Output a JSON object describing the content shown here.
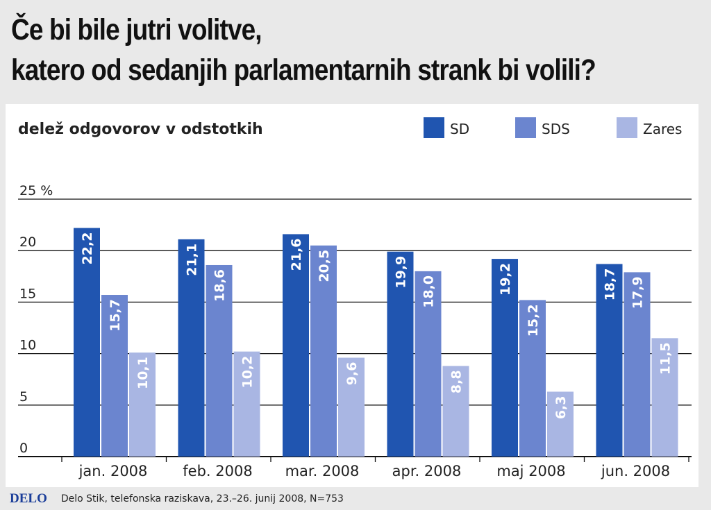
{
  "header": {
    "title_line1": "Če bi bile jutri volitve,",
    "title_line2": "katero od sedanjih parlamentarnih strank bi volili?"
  },
  "footer": {
    "logo": "DELO",
    "source": "Delo Stik, telefonska raziskava, 23.–26. junij 2008, N=753"
  },
  "chart_data": {
    "type": "bar",
    "title": "",
    "subtitle": "delež odgovorov v odstotkih",
    "ylabel": "",
    "xlabel": "",
    "ylim": [
      0,
      25
    ],
    "y_ticks": [
      "0",
      "5",
      "10",
      "15",
      "20",
      "25 %"
    ],
    "y_tick_values": [
      0,
      5,
      10,
      15,
      20,
      25
    ],
    "grid": true,
    "legend_placement": "top-right",
    "categories": [
      "jan. 2008",
      "feb. 2008",
      "mar. 2008",
      "apr. 2008",
      "maj 2008",
      "jun. 2008"
    ],
    "series": [
      {
        "name": "SD",
        "color": "#2055b0",
        "values": [
          22.2,
          21.1,
          21.6,
          19.9,
          19.2,
          18.7
        ],
        "labels": [
          "22,2",
          "21,1",
          "21,6",
          "19,9",
          "19,2",
          "18,7"
        ]
      },
      {
        "name": "SDS",
        "color": "#6b85cf",
        "values": [
          15.7,
          18.6,
          20.5,
          18.0,
          15.2,
          17.9
        ],
        "labels": [
          "15,7",
          "18,6",
          "20,5",
          "18,0",
          "15,2",
          "17,9"
        ]
      },
      {
        "name": "Zares",
        "color": "#a9b6e3",
        "values": [
          10.1,
          10.2,
          9.6,
          8.8,
          6.3,
          11.5
        ],
        "labels": [
          "10,1",
          "10,2",
          "9,6",
          "8,8",
          "6,3",
          "11,5"
        ]
      }
    ]
  }
}
